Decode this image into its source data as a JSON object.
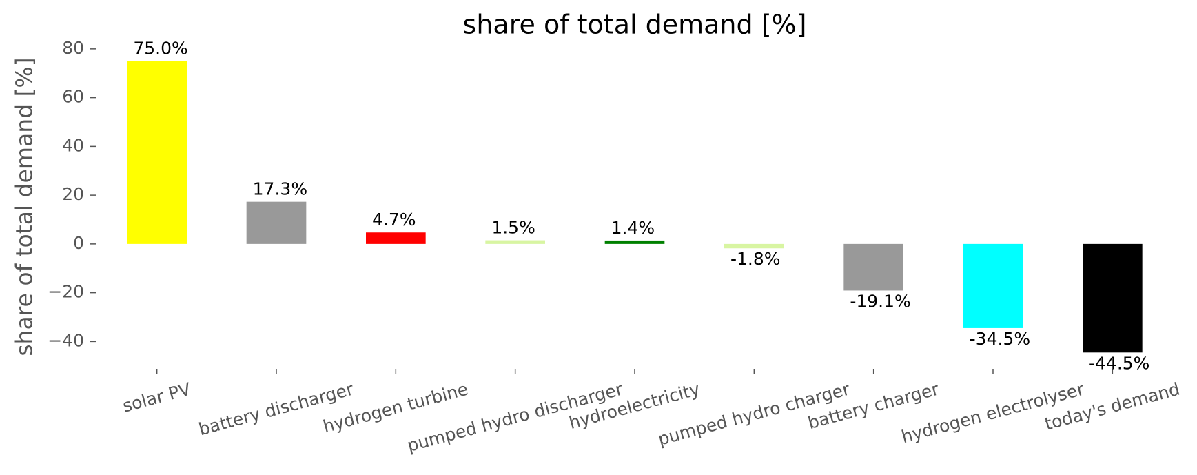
{
  "chart_data": {
    "type": "bar",
    "title": "share of total demand [%]",
    "ylabel": "share of total demand [%]",
    "categories": [
      "solar PV",
      "battery discharger",
      "hydrogen turbine",
      "pumped hydro discharger",
      "hydroelectricity",
      "pumped hydro charger",
      "battery charger",
      "hydrogen electrolyser",
      "today's demand"
    ],
    "values": [
      75.0,
      17.3,
      4.7,
      1.5,
      1.4,
      -1.8,
      -19.1,
      -34.5,
      -44.5
    ],
    "value_labels": [
      "75.0%",
      "17.3%",
      "4.7%",
      "1.5%",
      "1.4%",
      "-1.8%",
      "-19.1%",
      "-34.5%",
      "-44.5%"
    ],
    "colors": [
      "#ffff00",
      "#999999",
      "#ff0000",
      "#d8f5a2",
      "#008000",
      "#d8f5a2",
      "#999999",
      "#00ffff",
      "#000000"
    ],
    "ylim": [
      -49.5,
      82.5
    ],
    "yticks": [
      {
        "value": -40,
        "label": "−40"
      },
      {
        "value": -20,
        "label": "−20"
      },
      0,
      20,
      40,
      60,
      80
    ],
    "grid": false
  }
}
